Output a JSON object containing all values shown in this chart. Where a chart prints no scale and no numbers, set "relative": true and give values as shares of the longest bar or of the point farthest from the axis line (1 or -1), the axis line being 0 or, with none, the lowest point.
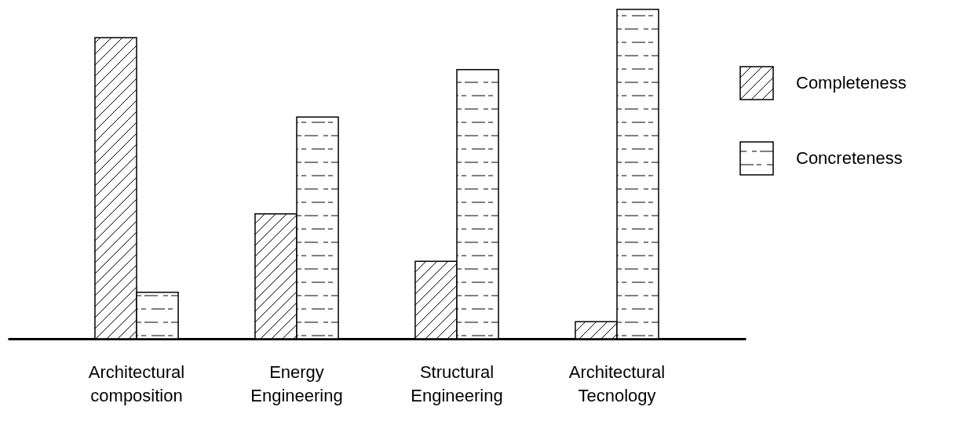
{
  "chart_data": {
    "type": "bar",
    "relative": true,
    "categories": [
      "Architectural composition",
      "Energy Engineering",
      "Structural Engineering",
      "Architectural Tecnology"
    ],
    "series": [
      {
        "name": "Completeness",
        "color": "#000000",
        "values": [
          0.914,
          0.379,
          0.235,
          0.052
        ]
      },
      {
        "name": "Concreteness",
        "color": "#000000",
        "values": [
          0.141,
          0.673,
          0.817,
          1
        ]
      }
    ],
    "legend": "right"
  }
}
